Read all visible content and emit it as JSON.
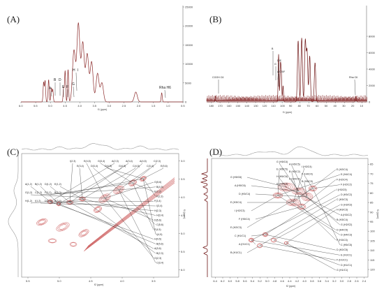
{
  "chart_data": [
    {
      "panel": "(A)",
      "type": "line",
      "x_axis": {
        "label": "f1 (ppm)",
        "ticks": [
          "6.0",
          "5.5",
          "5.0",
          "4.5",
          "4.0",
          "3.5",
          "3.0",
          "2.5",
          "2.0",
          "1.5",
          "1.0",
          "0.5"
        ],
        "range": [
          6.0,
          0.5
        ]
      },
      "y_axis": {
        "ticks": [
          "25000",
          "20000",
          "15000",
          "10000",
          "5000",
          "0"
        ],
        "range": [
          0,
          25000
        ]
      },
      "peaks": [
        {
          "label": "A",
          "x": 5.23,
          "y": 5200
        },
        {
          "label": "B",
          "x": 5.18,
          "y": 5600
        },
        {
          "label": "D",
          "x": 5.06,
          "y": 5900
        },
        {
          "label": "E",
          "x": 4.97,
          "y": 3600
        },
        {
          "label": "F",
          "x": 4.92,
          "y": 3300
        },
        {
          "label": "G",
          "x": 4.55,
          "y": 3700
        },
        {
          "label": "H",
          "x": 4.5,
          "y": 8200
        },
        {
          "label": "I",
          "x": 4.4,
          "y": 8600
        },
        {
          "label": "",
          "x": 4.2,
          "y": 13500
        },
        {
          "label": "",
          "x": 4.05,
          "y": 20500
        },
        {
          "label": "",
          "x": 3.9,
          "y": 15500
        },
        {
          "label": "",
          "x": 3.75,
          "y": 12500
        },
        {
          "label": "",
          "x": 3.6,
          "y": 10500
        },
        {
          "label": "",
          "x": 3.4,
          "y": 7500
        },
        {
          "label": "",
          "x": 3.25,
          "y": 5000
        },
        {
          "label": "",
          "x": 2.1,
          "y": 2600
        },
        {
          "label": "Rha H6",
          "x": 1.22,
          "y": 2400
        }
      ],
      "annotations": {
        "a": "A",
        "b": "B",
        "d": "D",
        "e": "E",
        "f": "F",
        "g": "G",
        "h": "H",
        "i": "I",
        "rha": "Rha H6"
      }
    },
    {
      "panel": "(B)",
      "type": "line",
      "x_axis": {
        "label": "f1 (ppm)",
        "ticks": [
          "180",
          "170",
          "160",
          "150",
          "140",
          "130",
          "120",
          "110",
          "100",
          "90",
          "80",
          "70",
          "60",
          "50",
          "40",
          "30",
          "20",
          "10"
        ],
        "range": [
          185,
          5
        ]
      },
      "y_axis": {
        "ticks": [
          "8000",
          "6000",
          "4000",
          "2000",
          "0"
        ],
        "range": [
          0,
          8000
        ]
      },
      "peaks": [
        {
          "label": "COOH C6",
          "x": 175,
          "y": 700
        },
        {
          "label": "B",
          "x": 104,
          "y": 5800
        },
        {
          "label": "D/E",
          "x": 102,
          "y": 4300
        },
        {
          "label": "G",
          "x": 101,
          "y": 3400
        },
        {
          "label": "A/C/I/F",
          "x": 99,
          "y": 2000
        },
        {
          "label": "",
          "x": 82,
          "y": 7500
        },
        {
          "label": "",
          "x": 78,
          "y": 7800
        },
        {
          "label": "",
          "x": 74,
          "y": 7400
        },
        {
          "label": "",
          "x": 72,
          "y": 6200
        },
        {
          "label": "",
          "x": 69,
          "y": 5600
        },
        {
          "label": "",
          "x": 63,
          "y": 4800
        },
        {
          "label": "Rha C6",
          "x": 17,
          "y": 700
        }
      ],
      "annotations": {
        "cooh": "COOH C6",
        "b": "B",
        "de": "D/E",
        "g": "G",
        "acif": "A/C/I/F",
        "rha": "Rha C6"
      }
    },
    {
      "panel": "(C)",
      "type": "heatmap",
      "x_axis": {
        "label": "f2 (ppm)",
        "ticks": [
          "5.5",
          "5.0",
          "4.5",
          "4.0",
          "3.5"
        ],
        "range": [
          5.6,
          3.1
        ]
      },
      "y_axis": {
        "label": "f1 (ppm)",
        "ticks": [
          "3.0",
          "3.5",
          "4.0",
          "4.5",
          "5.0",
          "5.5",
          "6.0"
        ],
        "range": [
          2.8,
          6.2
        ]
      },
      "labels_left": [
        "A(1,2)",
        "B(1,2)",
        "D(1,2)",
        "E(1,2)",
        "G(1,2)",
        "C(1,2)",
        "F(1,2)",
        "B(2,3)",
        "H(1,2)",
        "I(1,2)",
        "D(2,3)",
        "B(3,4)"
      ],
      "labels_top": [
        "I(2,3)",
        "E(3,4)",
        "E(4,5)",
        "D(3,4)",
        "G(3,4)",
        "D(4,5)",
        "A(2,3)",
        "G(4,5)",
        "A(3,4)",
        "C(4,5)",
        "A(4,5)",
        "C(3,4)",
        "C(2,3)",
        "E(5,6)"
      ],
      "labels_right": [
        "G(5,6)",
        "B(4,5)",
        "E(2,3)",
        "F(2,3)",
        "F(3,4)",
        "I(3,4)",
        "H(2,3)",
        "H(3,4)",
        "D(5,6)",
        "C(5,6)",
        "F(4,5)",
        "I(4,5)",
        "H(4,5)",
        "B(5,6)",
        "A(5,6)",
        "B(2,3)",
        "G(2,3)",
        "C(3,4)"
      ]
    },
    {
      "panel": "(D)",
      "type": "heatmap",
      "x_axis": {
        "label": "f2 (ppm)",
        "ticks": [
          "6.4",
          "6.2",
          "6.0",
          "5.8",
          "5.6",
          "5.4",
          "5.2",
          "5.0",
          "4.8",
          "4.6",
          "4.4",
          "4.2",
          "4.0",
          "3.8",
          "3.6",
          "3.4",
          "3.2",
          "3.0",
          "2.8",
          "2.6",
          "2.4"
        ],
        "range": [
          6.5,
          2.3
        ]
      },
      "y_axis": {
        "label": "f1 (ppm)",
        "ticks": [
          "65",
          "70",
          "75",
          "80",
          "85",
          "90",
          "95",
          "100",
          "105",
          "110",
          "115",
          "120"
        ],
        "range": [
          62,
          124
        ]
      },
      "labels_left": [
        "G (H5/C6)",
        "A (H5/C6)",
        "D (H3/C4)",
        "E (H3/C4)",
        "I (H2/C3)",
        "F (H5/C4)",
        "E (H2/C3)",
        "C (H1/C1)",
        "A (H1/C1)",
        "B (H1/C1)"
      ],
      "labels_top": [
        "G (H5/C4)",
        "A (H5/C5)",
        "I (H3/C4)",
        "E (H5/C5)",
        "B (H2/C2)",
        "F (H4/C4)",
        "H (H5/C6)",
        "A (H4/C4)",
        "B (H5/C5)",
        "G (H4/C4)"
      ],
      "labels_right": [
        "E (H2/C4)",
        "E (H4/C4)",
        "F (H2/C4)",
        "F (H2/C2)",
        "I (H3/C5)",
        "D (H3/C2)",
        "C (H3/C3)",
        "G (H3/C3)",
        "H (H3/C3)",
        "A (H3/C2)",
        "B (H3/C4)",
        "G (H2/C2)",
        "D (H4/C5)",
        "D (H4/C3)",
        "F (H3/C3)",
        "C (H5/C5)",
        "D (H2/C5)",
        "E (H1/C1)",
        "F (H1/C1)",
        "D (H1/C1)",
        "G (H1/C1)"
      ]
    }
  ]
}
